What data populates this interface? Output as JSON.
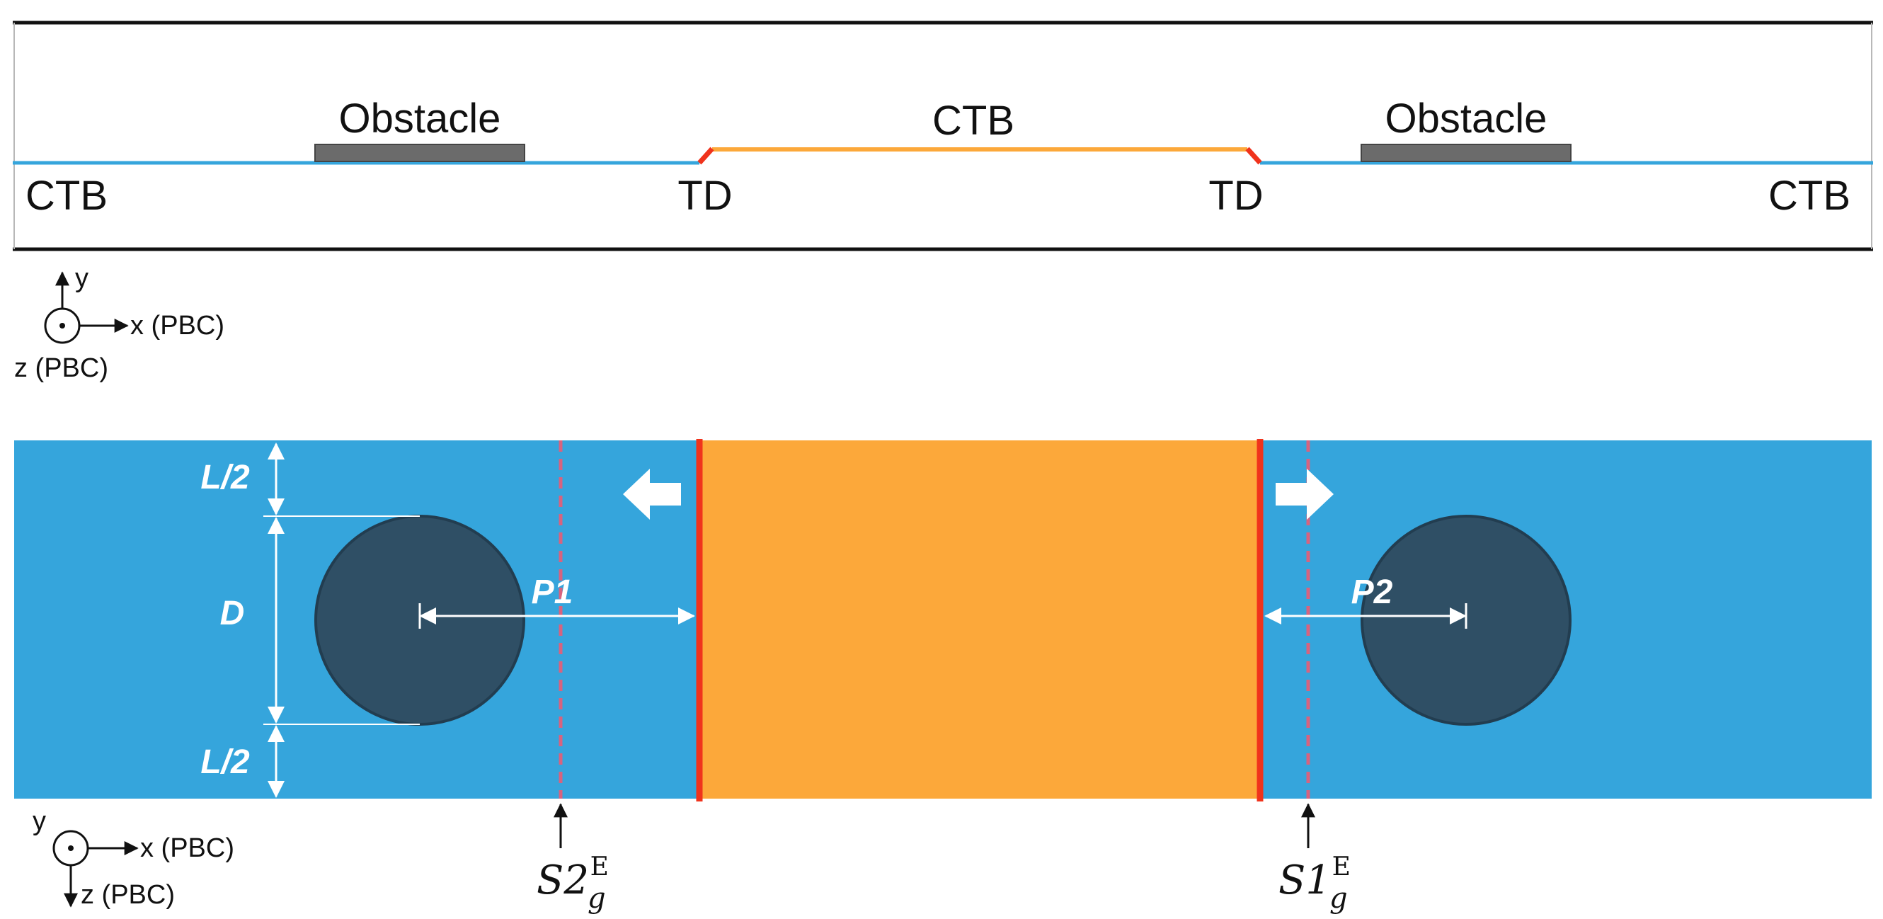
{
  "top_view": {
    "labels": {
      "obstacle_left": "Obstacle",
      "obstacle_right": "Obstacle",
      "ctb_center": "CTB",
      "ctb_left": "CTB",
      "ctb_right": "CTB",
      "td_left": "TD",
      "td_right": "TD"
    }
  },
  "axes_top": {
    "y_label": "y",
    "x_label": "x (PBC)",
    "z_label": "z (PBC)"
  },
  "bottom_view": {
    "labels": {
      "l_half_top": "L/2",
      "d": "D",
      "l_half_bottom": "L/2",
      "p1": "P1",
      "p2": "P2",
      "s2_main": "S2",
      "s2_sub": "g",
      "s2_sup": "E",
      "s1_main": "S1",
      "s1_sub": "g",
      "s1_sup": "E"
    }
  },
  "axes_bottom": {
    "y_label": "y",
    "x_label": "x (PBC)",
    "z_label": "z (PBC)"
  },
  "colors": {
    "matrix_blue": "#35a5dc",
    "twin_orange": "#fca83a",
    "boundary_red": "#f0331c",
    "obstacle_dark": "#2f4f65",
    "obstacle_gray": "#6b6b6b",
    "dash_pink": "#d7637f"
  }
}
